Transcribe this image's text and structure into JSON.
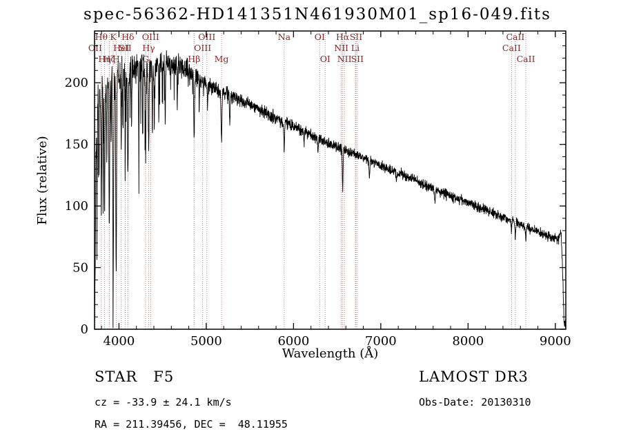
{
  "title": "spec-56362-HD141351N461930M01_sp16-049.fits",
  "footer": {
    "class_line": "STAR   F5",
    "survey_line": "LAMOST DR3",
    "cz_line": "cz = -33.9 ± 24.1 km/s",
    "obs_date_line": "Obs-Date: 20130310",
    "coords_line": "RA = 211.39456, DEC =  48.11955"
  },
  "chart_data": {
    "type": "line",
    "title": "spec-56362-HD141351N461930M01_sp16-049.fits",
    "xlabel": "Wavelength (Å)",
    "ylabel": "Flux (relative)",
    "xlim": [
      3720,
      9120
    ],
    "ylim": [
      0,
      242
    ],
    "x_ticks": [
      4000,
      5000,
      6000,
      7000,
      8000,
      9000
    ],
    "y_ticks": [
      0,
      50,
      100,
      150,
      200
    ],
    "x_minor_step": 200,
    "y_minor_step": 10,
    "grid": false,
    "series_color": "#000000",
    "marker_line_color": "#bd7d7d",
    "marker_label_color": "#8b2525",
    "continuum_points": [
      [
        3720,
        5
      ],
      [
        3730,
        90
      ],
      [
        3740,
        160
      ],
      [
        3760,
        188
      ],
      [
        3790,
        196
      ],
      [
        3860,
        200
      ],
      [
        3940,
        203
      ],
      [
        4020,
        206
      ],
      [
        4100,
        208
      ],
      [
        4200,
        211
      ],
      [
        4300,
        213
      ],
      [
        4400,
        214
      ],
      [
        4500,
        215
      ],
      [
        4600,
        215
      ],
      [
        4700,
        213
      ],
      [
        4800,
        210
      ],
      [
        4900,
        205
      ],
      [
        5000,
        199
      ],
      [
        5100,
        195
      ],
      [
        5200,
        192
      ],
      [
        5300,
        189
      ],
      [
        5400,
        186
      ],
      [
        5500,
        182
      ],
      [
        5600,
        179
      ],
      [
        5700,
        175
      ],
      [
        5800,
        171
      ],
      [
        5900,
        168
      ],
      [
        6000,
        165
      ],
      [
        6100,
        161
      ],
      [
        6200,
        158
      ],
      [
        6300,
        154
      ],
      [
        6400,
        151
      ],
      [
        6500,
        148
      ],
      [
        6600,
        145
      ],
      [
        6700,
        142
      ],
      [
        6800,
        139
      ],
      [
        6900,
        136
      ],
      [
        7000,
        133
      ],
      [
        7100,
        130
      ],
      [
        7200,
        127
      ],
      [
        7300,
        124
      ],
      [
        7400,
        121
      ],
      [
        7500,
        117
      ],
      [
        7600,
        114
      ],
      [
        7700,
        111
      ],
      [
        7800,
        108
      ],
      [
        7900,
        105
      ],
      [
        8000,
        103
      ],
      [
        8100,
        100
      ],
      [
        8200,
        97
      ],
      [
        8300,
        94
      ],
      [
        8400,
        91
      ],
      [
        8500,
        88
      ],
      [
        8600,
        85
      ],
      [
        8700,
        82
      ],
      [
        8800,
        79
      ],
      [
        8900,
        76
      ],
      [
        9000,
        74
      ],
      [
        9040,
        73
      ],
      [
        9065,
        80
      ],
      [
        9085,
        45
      ],
      [
        9100,
        5
      ]
    ],
    "absorption_features": [
      [
        3727,
        0.25,
        4
      ],
      [
        3750,
        0.35,
        5
      ],
      [
        3771,
        0.4,
        5
      ],
      [
        3798,
        0.5,
        6
      ],
      [
        3820,
        0.3,
        4
      ],
      [
        3835,
        0.55,
        6
      ],
      [
        3860,
        0.3,
        4
      ],
      [
        3889,
        0.6,
        6
      ],
      [
        3910,
        0.25,
        4
      ],
      [
        3934,
        0.8,
        7
      ],
      [
        3968,
        0.75,
        7
      ],
      [
        4026,
        0.3,
        4
      ],
      [
        4045,
        0.25,
        4
      ],
      [
        4072,
        0.3,
        4
      ],
      [
        4102,
        0.4,
        7
      ],
      [
        4144,
        0.25,
        4
      ],
      [
        4227,
        0.3,
        4
      ],
      [
        4271,
        0.25,
        4
      ],
      [
        4305,
        0.35,
        6
      ],
      [
        4340,
        0.32,
        7
      ],
      [
        4383,
        0.28,
        4
      ],
      [
        4405,
        0.22,
        4
      ],
      [
        4457,
        0.18,
        4
      ],
      [
        4530,
        0.18,
        5
      ],
      [
        4668,
        0.15,
        4
      ],
      [
        4861,
        0.24,
        7
      ],
      [
        4920,
        0.12,
        4
      ],
      [
        5015,
        0.1,
        4
      ],
      [
        5175,
        0.18,
        8
      ],
      [
        5270,
        0.12,
        5
      ],
      [
        5893,
        0.13,
        6
      ],
      [
        6122,
        0.07,
        4
      ],
      [
        6280,
        0.07,
        5
      ],
      [
        6563,
        0.22,
        6
      ],
      [
        6870,
        0.1,
        7
      ],
      [
        7180,
        0.05,
        8
      ],
      [
        7620,
        0.08,
        9
      ],
      [
        8498,
        0.1,
        5
      ],
      [
        8542,
        0.15,
        6
      ],
      [
        8662,
        0.13,
        6
      ]
    ],
    "noise": {
      "seed": 7,
      "sigma_points": [
        [
          3720,
          8
        ],
        [
          4200,
          6.5
        ],
        [
          4700,
          4.5
        ],
        [
          5200,
          3
        ],
        [
          6000,
          2.3
        ],
        [
          7000,
          2
        ],
        [
          8000,
          2
        ],
        [
          9100,
          2.2
        ]
      ],
      "spike_region_end": 5100,
      "step": 2
    },
    "spectral_line_markers": [
      {
        "label": "Hθ",
        "wavelength": 3798,
        "row": 1
      },
      {
        "label": "K",
        "wavelength": 3934,
        "row": 1
      },
      {
        "label": "Hδ",
        "wavelength": 4102,
        "row": 1
      },
      {
        "label": "OIII",
        "wavelength": 4363,
        "row": 1
      },
      {
        "label": "OIII",
        "wavelength": 5007,
        "row": 1
      },
      {
        "label": "Na",
        "wavelength": 5893,
        "row": 1
      },
      {
        "label": "OI",
        "wavelength": 6300,
        "row": 1
      },
      {
        "label": "Hα",
        "wavelength": 6563,
        "row": 1
      },
      {
        "label": "SII",
        "wavelength": 6716,
        "row": 1
      },
      {
        "label": "CaII",
        "wavelength": 8542,
        "row": 1
      },
      {
        "label": "OII",
        "wavelength": 3727,
        "row": 2
      },
      {
        "label": "HeI",
        "wavelength": 4026,
        "row": 2
      },
      {
        "label": "SII",
        "wavelength": 4072,
        "row": 2
      },
      {
        "label": "Hγ",
        "wavelength": 4340,
        "row": 2
      },
      {
        "label": "OIII",
        "wavelength": 4959,
        "row": 2
      },
      {
        "label": "NII",
        "wavelength": 6548,
        "row": 2
      },
      {
        "label": "Li",
        "wavelength": 6708,
        "row": 2
      },
      {
        "label": "CaII",
        "wavelength": 8498,
        "row": 2
      },
      {
        "label": "Hη",
        "wavelength": 3835,
        "row": 3
      },
      {
        "label": "Hζ",
        "wavelength": 3889,
        "row": 3
      },
      {
        "label": "H",
        "wavelength": 3968,
        "row": 3
      },
      {
        "label": "G",
        "wavelength": 4305,
        "row": 3
      },
      {
        "label": "Hβ",
        "wavelength": 4861,
        "row": 3
      },
      {
        "label": "Mg",
        "wavelength": 5175,
        "row": 3
      },
      {
        "label": "OI",
        "wavelength": 6363,
        "row": 3
      },
      {
        "label": "NII",
        "wavelength": 6583,
        "row": 3
      },
      {
        "label": "SII",
        "wavelength": 6731,
        "row": 3
      },
      {
        "label": "CaII",
        "wavelength": 8662,
        "row": 3
      }
    ]
  }
}
